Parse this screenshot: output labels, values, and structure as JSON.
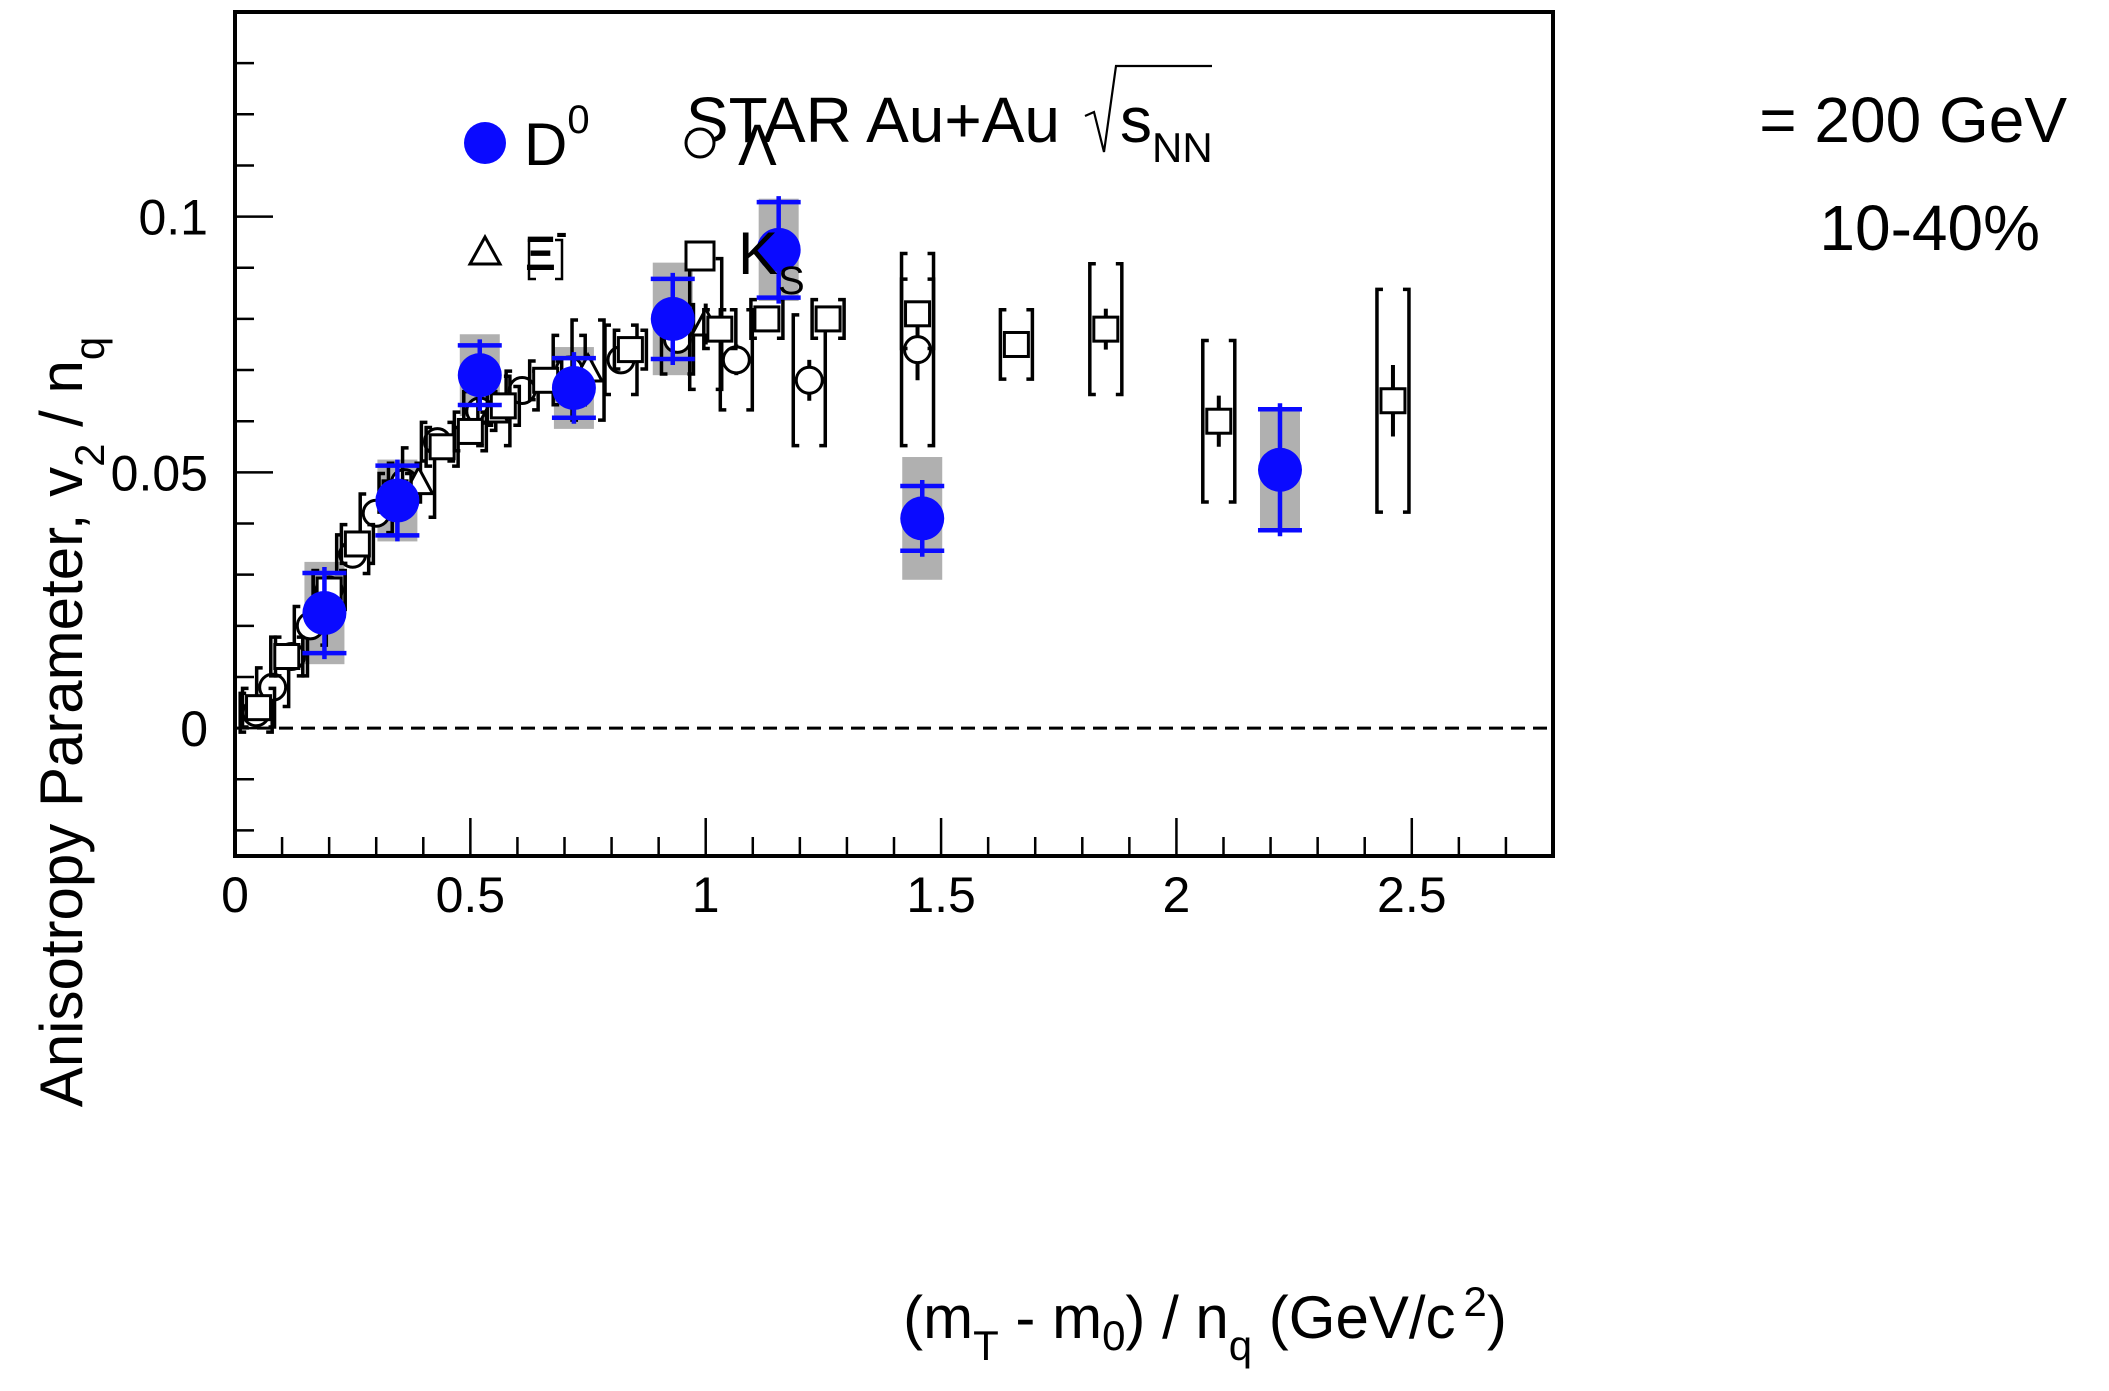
{
  "chart_data": {
    "type": "scatter",
    "title": "STAR Au+Au",
    "energy_label": "= 200 GeV",
    "sqrt_label": "s",
    "sqrt_sub": "NN",
    "centrality": "10-40%",
    "xlabel": {
      "p1": "(m",
      "s1": "T",
      "p2": " - m",
      "s2": "0",
      "p3": ") / n",
      "s3": "q",
      "p4": " (GeV/c",
      "sup": "2",
      "p5": ")"
    },
    "ylabel": {
      "p1": "Anisotropy Parameter, v",
      "s1": "2",
      "p2": " / n",
      "s2": "q"
    },
    "xlim": [
      0,
      2.8
    ],
    "ylim": [
      -0.025,
      0.14
    ],
    "x_ticks": [
      {
        "v": 0,
        "label": "0"
      },
      {
        "v": 0.5,
        "label": "0.5"
      },
      {
        "v": 1,
        "label": "1"
      },
      {
        "v": 1.5,
        "label": "1.5"
      },
      {
        "v": 2,
        "label": "2"
      },
      {
        "v": 2.5,
        "label": "2.5"
      }
    ],
    "y_ticks": [
      {
        "v": 0,
        "label": "0"
      },
      {
        "v": 0.05,
        "label": "0.05"
      },
      {
        "v": 0.1,
        "label": "0.1"
      }
    ],
    "reference_line": 0,
    "legend": [
      {
        "key": "D0",
        "label": "D",
        "sup": "0",
        "marker": "filled-circle",
        "color": "#0a0aff"
      },
      {
        "key": "Lambda",
        "label": "Λ",
        "marker": "open-circle",
        "color": "#000000"
      },
      {
        "key": "Xi",
        "label": "Ξ",
        "sup": "-",
        "marker": "open-triangle",
        "color": "#000000"
      },
      {
        "key": "KS",
        "label": "K",
        "sub": "S",
        "marker": "open-square",
        "color": "#000000"
      }
    ],
    "series": [
      {
        "name": "D0",
        "marker": "filled-circle",
        "color": "#0a0aff",
        "points": [
          {
            "x": 0.19,
            "y": 0.0225,
            "stat": 0.009,
            "sys": 0.01
          },
          {
            "x": 0.345,
            "y": 0.0445,
            "stat": 0.008,
            "sys": 0.008
          },
          {
            "x": 0.52,
            "y": 0.069,
            "stat": 0.007,
            "sys": 0.008
          },
          {
            "x": 0.72,
            "y": 0.0665,
            "stat": 0.007,
            "sys": 0.008
          },
          {
            "x": 0.93,
            "y": 0.08,
            "stat": 0.009,
            "sys": 0.011
          },
          {
            "x": 1.155,
            "y": 0.0935,
            "stat": 0.0105,
            "sys": 0.01
          },
          {
            "x": 1.46,
            "y": 0.041,
            "stat": 0.0075,
            "sys": 0.012
          },
          {
            "x": 2.22,
            "y": 0.0505,
            "stat": 0.013,
            "sys": 0.012
          }
        ]
      },
      {
        "name": "Lambda",
        "marker": "open-circle",
        "color": "#000000",
        "points": [
          {
            "x": 0.045,
            "y": 0.003,
            "stat": 0.001
          },
          {
            "x": 0.08,
            "y": 0.008,
            "stat": 0.001
          },
          {
            "x": 0.12,
            "y": 0.014,
            "stat": 0.001
          },
          {
            "x": 0.16,
            "y": 0.02,
            "stat": 0.001
          },
          {
            "x": 0.2,
            "y": 0.027,
            "stat": 0.001
          },
          {
            "x": 0.25,
            "y": 0.034,
            "stat": 0.001
          },
          {
            "x": 0.3,
            "y": 0.042,
            "stat": 0.001
          },
          {
            "x": 0.36,
            "y": 0.048,
            "stat": 0.001
          },
          {
            "x": 0.43,
            "y": 0.056,
            "stat": 0.001
          },
          {
            "x": 0.52,
            "y": 0.062,
            "stat": 0.001
          },
          {
            "x": 0.61,
            "y": 0.066,
            "stat": 0.001
          },
          {
            "x": 0.71,
            "y": 0.07,
            "stat": 0.002
          },
          {
            "x": 0.82,
            "y": 0.072,
            "stat": 0.002
          },
          {
            "x": 0.94,
            "y": 0.076,
            "stat": 0.002
          },
          {
            "x": 1.065,
            "y": 0.072,
            "stat": 0.003
          },
          {
            "x": 1.22,
            "y": 0.068,
            "stat": 0.004
          },
          {
            "x": 1.45,
            "y": 0.074,
            "stat": 0.006
          }
        ]
      },
      {
        "name": "Xi",
        "marker": "open-triangle",
        "color": "#000000",
        "points": [
          {
            "x": 0.39,
            "y": 0.048,
            "stat": 0.002
          },
          {
            "x": 0.55,
            "y": 0.062,
            "stat": 0.002
          },
          {
            "x": 0.75,
            "y": 0.07,
            "stat": 0.003
          },
          {
            "x": 1.0,
            "y": 0.079,
            "stat": 0.004
          }
        ]
      },
      {
        "name": "KS",
        "marker": "open-square",
        "color": "#000000",
        "points": [
          {
            "x": 0.05,
            "y": 0.004,
            "stat": 0.001
          },
          {
            "x": 0.11,
            "y": 0.014,
            "stat": 0.001
          },
          {
            "x": 0.2,
            "y": 0.027,
            "stat": 0.001
          },
          {
            "x": 0.26,
            "y": 0.036,
            "stat": 0.001
          },
          {
            "x": 0.34,
            "y": 0.046,
            "stat": 0.001
          },
          {
            "x": 0.44,
            "y": 0.055,
            "stat": 0.001
          },
          {
            "x": 0.5,
            "y": 0.058,
            "stat": 0.001
          },
          {
            "x": 0.57,
            "y": 0.063,
            "stat": 0.001
          },
          {
            "x": 0.66,
            "y": 0.068,
            "stat": 0.001
          },
          {
            "x": 0.84,
            "y": 0.074,
            "stat": 0.001
          },
          {
            "x": 1.03,
            "y": 0.078,
            "stat": 0.001
          },
          {
            "x": 1.13,
            "y": 0.08,
            "stat": 0.001
          },
          {
            "x": 1.26,
            "y": 0.08,
            "stat": 0.001
          },
          {
            "x": 1.45,
            "y": 0.081,
            "stat": 0.002
          },
          {
            "x": 1.66,
            "y": 0.075,
            "stat": 0.002
          },
          {
            "x": 1.85,
            "y": 0.078,
            "stat": 0.004
          },
          {
            "x": 2.09,
            "y": 0.06,
            "stat": 0.005
          },
          {
            "x": 2.46,
            "y": 0.064,
            "stat": 0.007
          }
        ]
      }
    ]
  }
}
